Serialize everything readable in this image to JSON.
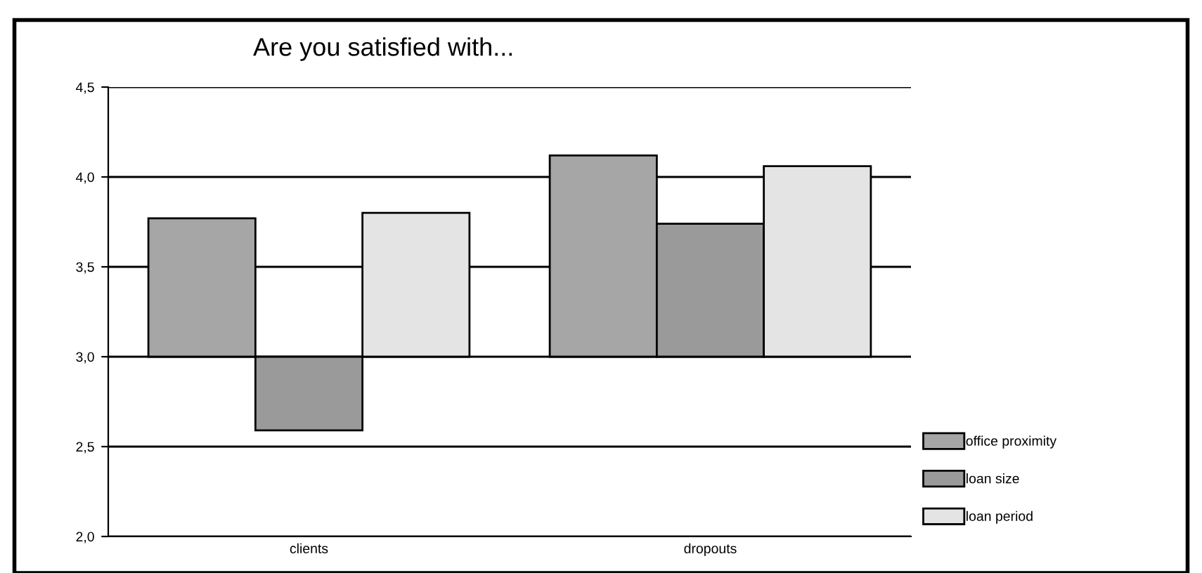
{
  "chart_data": {
    "type": "bar",
    "title": "Are you satisfied with...",
    "categories": [
      "clients",
      "dropouts"
    ],
    "series": [
      {
        "name": "office proximity",
        "color": "#a6a6a6",
        "base": [
          3.0,
          3.0
        ],
        "values": [
          0.77,
          1.12
        ]
      },
      {
        "name": "loan size",
        "color": "#9a9a9a",
        "base": [
          3.0,
          3.0
        ],
        "values": [
          -0.41,
          0.74
        ]
      },
      {
        "name": "loan period",
        "color": "#e4e4e4",
        "base": [
          3.0,
          3.0
        ],
        "values": [
          0.8,
          1.06
        ]
      }
    ],
    "ylim": [
      2.0,
      4.5
    ],
    "yticks": [
      {
        "value": 2.0,
        "label": "2,0"
      },
      {
        "value": 2.5,
        "label": "2,5"
      },
      {
        "value": 3.0,
        "label": "3,0"
      },
      {
        "value": 3.5,
        "label": "3,5"
      },
      {
        "value": 4.0,
        "label": "4,0"
      },
      {
        "value": 4.5,
        "label": "4,5"
      }
    ],
    "grid": "y",
    "legend": "right"
  }
}
